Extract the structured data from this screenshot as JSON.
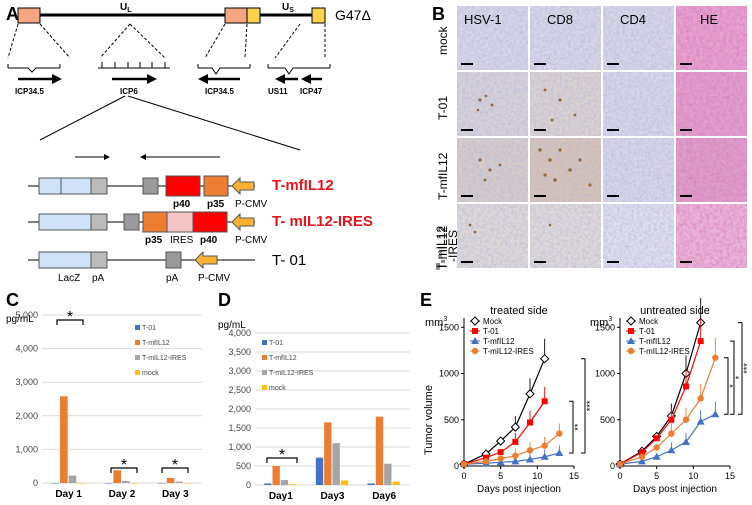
{
  "panel_a": {
    "letter": "A",
    "construct_name": "G47Δ",
    "ul_label": "U",
    "ul_sub": "L",
    "us_label": "U",
    "us_sub": "S",
    "gene_labels": [
      "ICP34.5",
      "ICP6",
      "ICP34.5",
      "US11",
      "ICP47"
    ],
    "constructs": [
      {
        "name": "T-mfIL12",
        "color": "#e8141c"
      },
      {
        "name": "T- mIL12-IRES",
        "color": "#e8141c"
      },
      {
        "name": "T- 01",
        "color": "#000000"
      }
    ],
    "element_labels": {
      "p40": "p40",
      "p35": "p35",
      "pcmv": "P-CMV",
      "ires": "IRES",
      "lacz": "LacZ",
      "pa": "pA"
    }
  },
  "panel_b": {
    "letter": "B",
    "columns": [
      "HSV-1",
      "CD8",
      "CD4",
      "HE"
    ],
    "rows": [
      "mock",
      "T-01",
      "T-mfIL12",
      "T-mIL12 -IRES"
    ]
  },
  "panel_c": {
    "letter": "C",
    "unit": "pg/mL",
    "legend": [
      "T-01",
      "T-mfIL12",
      "T-mIL12-IRES",
      "mock"
    ],
    "sig": [
      "*",
      "*",
      "*"
    ]
  },
  "panel_d": {
    "letter": "D",
    "unit": "pg/mL",
    "legend": [
      "T-01",
      "T-mfIL12",
      "T-mIL12-IRES",
      "mock"
    ],
    "sig": [
      "*"
    ]
  },
  "panel_e": {
    "letter": "E",
    "unit": "mm",
    "unit_sup": "3",
    "ylabel": "Tumor volume",
    "legend": [
      "Mock",
      "T-01",
      "T-mfIL12",
      "T-mIL12-IRES"
    ],
    "sig_left": [
      "**",
      "***"
    ],
    "sig_right": [
      "*",
      "*",
      "***"
    ]
  },
  "chart_data": [
    {
      "type": "bar",
      "id": "C",
      "title": "",
      "ylabel": "pg/mL",
      "ylim": [
        0,
        5000
      ],
      "yticks": [
        0,
        1000,
        2000,
        3000,
        4000,
        5000
      ],
      "ytick_labels": [
        "0",
        "1,000",
        "2,000",
        "3,000",
        "4,000",
        "5,000"
      ],
      "categories": [
        "Day 1",
        "Day 2",
        "Day 3"
      ],
      "series": [
        {
          "name": "T-01",
          "color": "#4472c4",
          "values": [
            0,
            0,
            0
          ]
        },
        {
          "name": "T-mfIL12",
          "color": "#ed7d31",
          "values": [
            2580,
            380,
            150
          ]
        },
        {
          "name": "T-mIL12-IRES",
          "color": "#a5a5a5",
          "values": [
            220,
            60,
            40
          ]
        },
        {
          "name": "mock",
          "color": "#ffc000",
          "values": [
            0,
            0,
            0
          ]
        }
      ]
    },
    {
      "type": "bar",
      "id": "D",
      "title": "",
      "ylabel": "pg/mL",
      "ylim": [
        0,
        4000
      ],
      "yticks": [
        0,
        500,
        1000,
        1500,
        2000,
        2500,
        3000,
        3500,
        4000
      ],
      "ytick_labels": [
        "0",
        "500",
        "1,000",
        "1,500",
        "2,000",
        "2,500",
        "3,000",
        "3,500",
        "4,000"
      ],
      "categories": [
        "Day1",
        "Day3",
        "Day6"
      ],
      "series": [
        {
          "name": "T-01",
          "color": "#4472c4",
          "values": [
            40,
            720,
            40
          ]
        },
        {
          "name": "T-mfIL12",
          "color": "#ed7d31",
          "values": [
            500,
            1650,
            1800
          ]
        },
        {
          "name": "T-mIL12-IRES",
          "color": "#a5a5a5",
          "values": [
            130,
            1100,
            560
          ]
        },
        {
          "name": "mock",
          "color": "#ffc000",
          "values": [
            20,
            120,
            90
          ]
        }
      ]
    },
    {
      "type": "line",
      "id": "E-treated",
      "title": "treated side",
      "xlabel": "Days post injection",
      "ylabel": "Tumor volume",
      "xlim": [
        0,
        15
      ],
      "ylim": [
        0,
        1600
      ],
      "xticks": [
        0,
        5,
        10,
        15
      ],
      "yticks": [
        0,
        500,
        1000,
        1500
      ],
      "series": [
        {
          "name": "Mock",
          "x": [
            0,
            3,
            5,
            7,
            9,
            11
          ],
          "y": [
            20,
            130,
            270,
            420,
            780,
            1160
          ]
        },
        {
          "name": "T-01",
          "x": [
            0,
            3,
            5,
            7,
            9,
            11
          ],
          "y": [
            20,
            90,
            150,
            260,
            470,
            700
          ]
        },
        {
          "name": "T-mfIL12",
          "x": [
            0,
            3,
            5,
            7,
            9,
            11,
            13
          ],
          "y": [
            20,
            30,
            40,
            50,
            70,
            100,
            140
          ]
        },
        {
          "name": "T-mIL12-IRES",
          "x": [
            0,
            3,
            5,
            7,
            9,
            11,
            13
          ],
          "y": [
            20,
            50,
            80,
            110,
            170,
            220,
            350
          ]
        }
      ]
    },
    {
      "type": "line",
      "id": "E-untreated",
      "title": "untreated side",
      "xlabel": "Days post injection",
      "ylabel": "",
      "xlim": [
        0,
        15
      ],
      "ylim": [
        0,
        1600
      ],
      "xticks": [
        0,
        5,
        10,
        15
      ],
      "yticks": [
        0,
        500,
        1000,
        1500
      ],
      "series": [
        {
          "name": "Mock",
          "x": [
            0,
            3,
            5,
            7,
            9,
            11
          ],
          "y": [
            20,
            160,
            320,
            540,
            1000,
            1550
          ]
        },
        {
          "name": "T-01",
          "x": [
            0,
            3,
            5,
            7,
            9,
            11
          ],
          "y": [
            20,
            150,
            300,
            500,
            860,
            1350
          ]
        },
        {
          "name": "T-mfIL12",
          "x": [
            0,
            3,
            5,
            7,
            9,
            11,
            13
          ],
          "y": [
            20,
            50,
            100,
            170,
            260,
            480,
            560
          ]
        },
        {
          "name": "T-mIL12-IRES",
          "x": [
            0,
            3,
            5,
            7,
            9,
            11,
            13
          ],
          "y": [
            20,
            100,
            200,
            350,
            500,
            730,
            1170
          ]
        }
      ]
    }
  ]
}
